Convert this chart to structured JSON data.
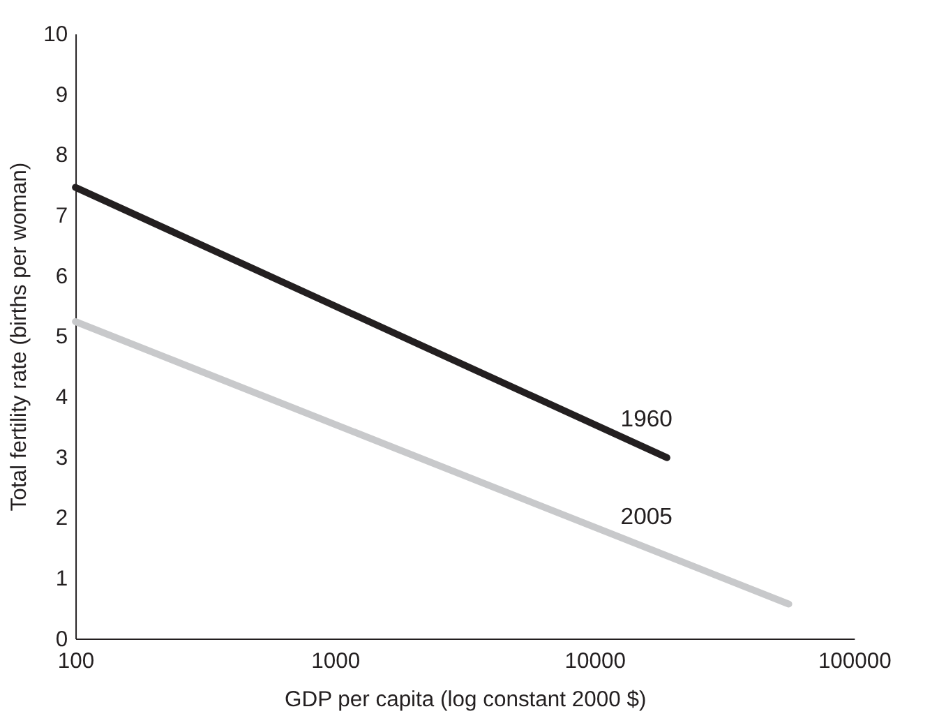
{
  "chart_data": {
    "type": "line",
    "xlabel": "GDP per capita (log constant 2000 $)",
    "ylabel": "Total fertility rate (births per woman)",
    "log": "x",
    "xlim": [
      100,
      100000
    ],
    "xticks": [
      100,
      1000,
      10000,
      100000
    ],
    "ylim": [
      0,
      10
    ],
    "yticks": [
      0,
      1,
      2,
      3,
      4,
      5,
      6,
      7,
      8,
      9,
      10
    ],
    "grid": false,
    "legend": false,
    "series": [
      {
        "name": "1960",
        "color": "#231f20",
        "x": [
          100,
          19000
        ],
        "values": [
          7.46,
          2.99
        ]
      },
      {
        "name": "2005",
        "color": "#c8c9cb",
        "x": [
          100,
          56000
        ],
        "values": [
          5.24,
          0.57
        ]
      }
    ]
  }
}
